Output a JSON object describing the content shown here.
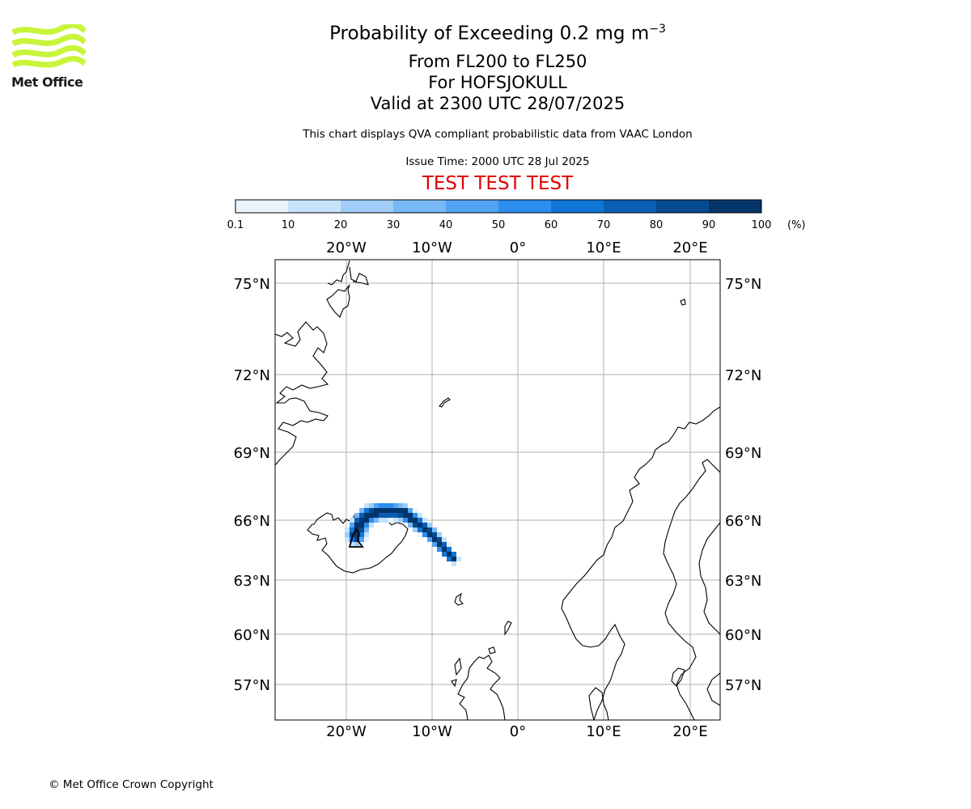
{
  "logo": {
    "text": "Met Office",
    "colors": {
      "waves": "#c8f53a",
      "text": "#1a1a1a"
    }
  },
  "title": {
    "line1": "Probability of Exceeding 0.2 mg m",
    "line1_sup": "−3",
    "line2": "From FL200 to FL250",
    "line3": "For HOFSJOKULL",
    "line4": "Valid at 2300 UTC 28/07/2025"
  },
  "subtitle": "This chart displays QVA compliant probabilistic data from VAAC London",
  "issue_time": "Issue Time: 2000 UTC 28 Jul 2025",
  "test_banner": {
    "text": "TEST TEST TEST",
    "color": "#e00000"
  },
  "colorbar": {
    "labels": [
      "0.1",
      "10",
      "20",
      "30",
      "40",
      "50",
      "60",
      "70",
      "80",
      "90",
      "100"
    ],
    "colors": [
      "#eaf4fe",
      "#c6e3fb",
      "#9fcdf8",
      "#78b8f5",
      "#52a3f2",
      "#2b8eef",
      "#0f75d6",
      "#095fb3",
      "#064a8f",
      "#03356b"
    ],
    "unit": "(%)"
  },
  "map": {
    "lon_ticks": [
      "20°W",
      "10°W",
      "0°",
      "10°E",
      "20°E"
    ],
    "lat_ticks": [
      "75°N",
      "72°N",
      "69°N",
      "66°N",
      "63°N",
      "60°N",
      "57°N"
    ],
    "grid": true,
    "volcano": "HOFSJOKULL",
    "plume_probability_levels_percent": [
      10,
      30,
      50,
      70,
      90
    ]
  },
  "copyright": "© Met Office Crown Copyright"
}
